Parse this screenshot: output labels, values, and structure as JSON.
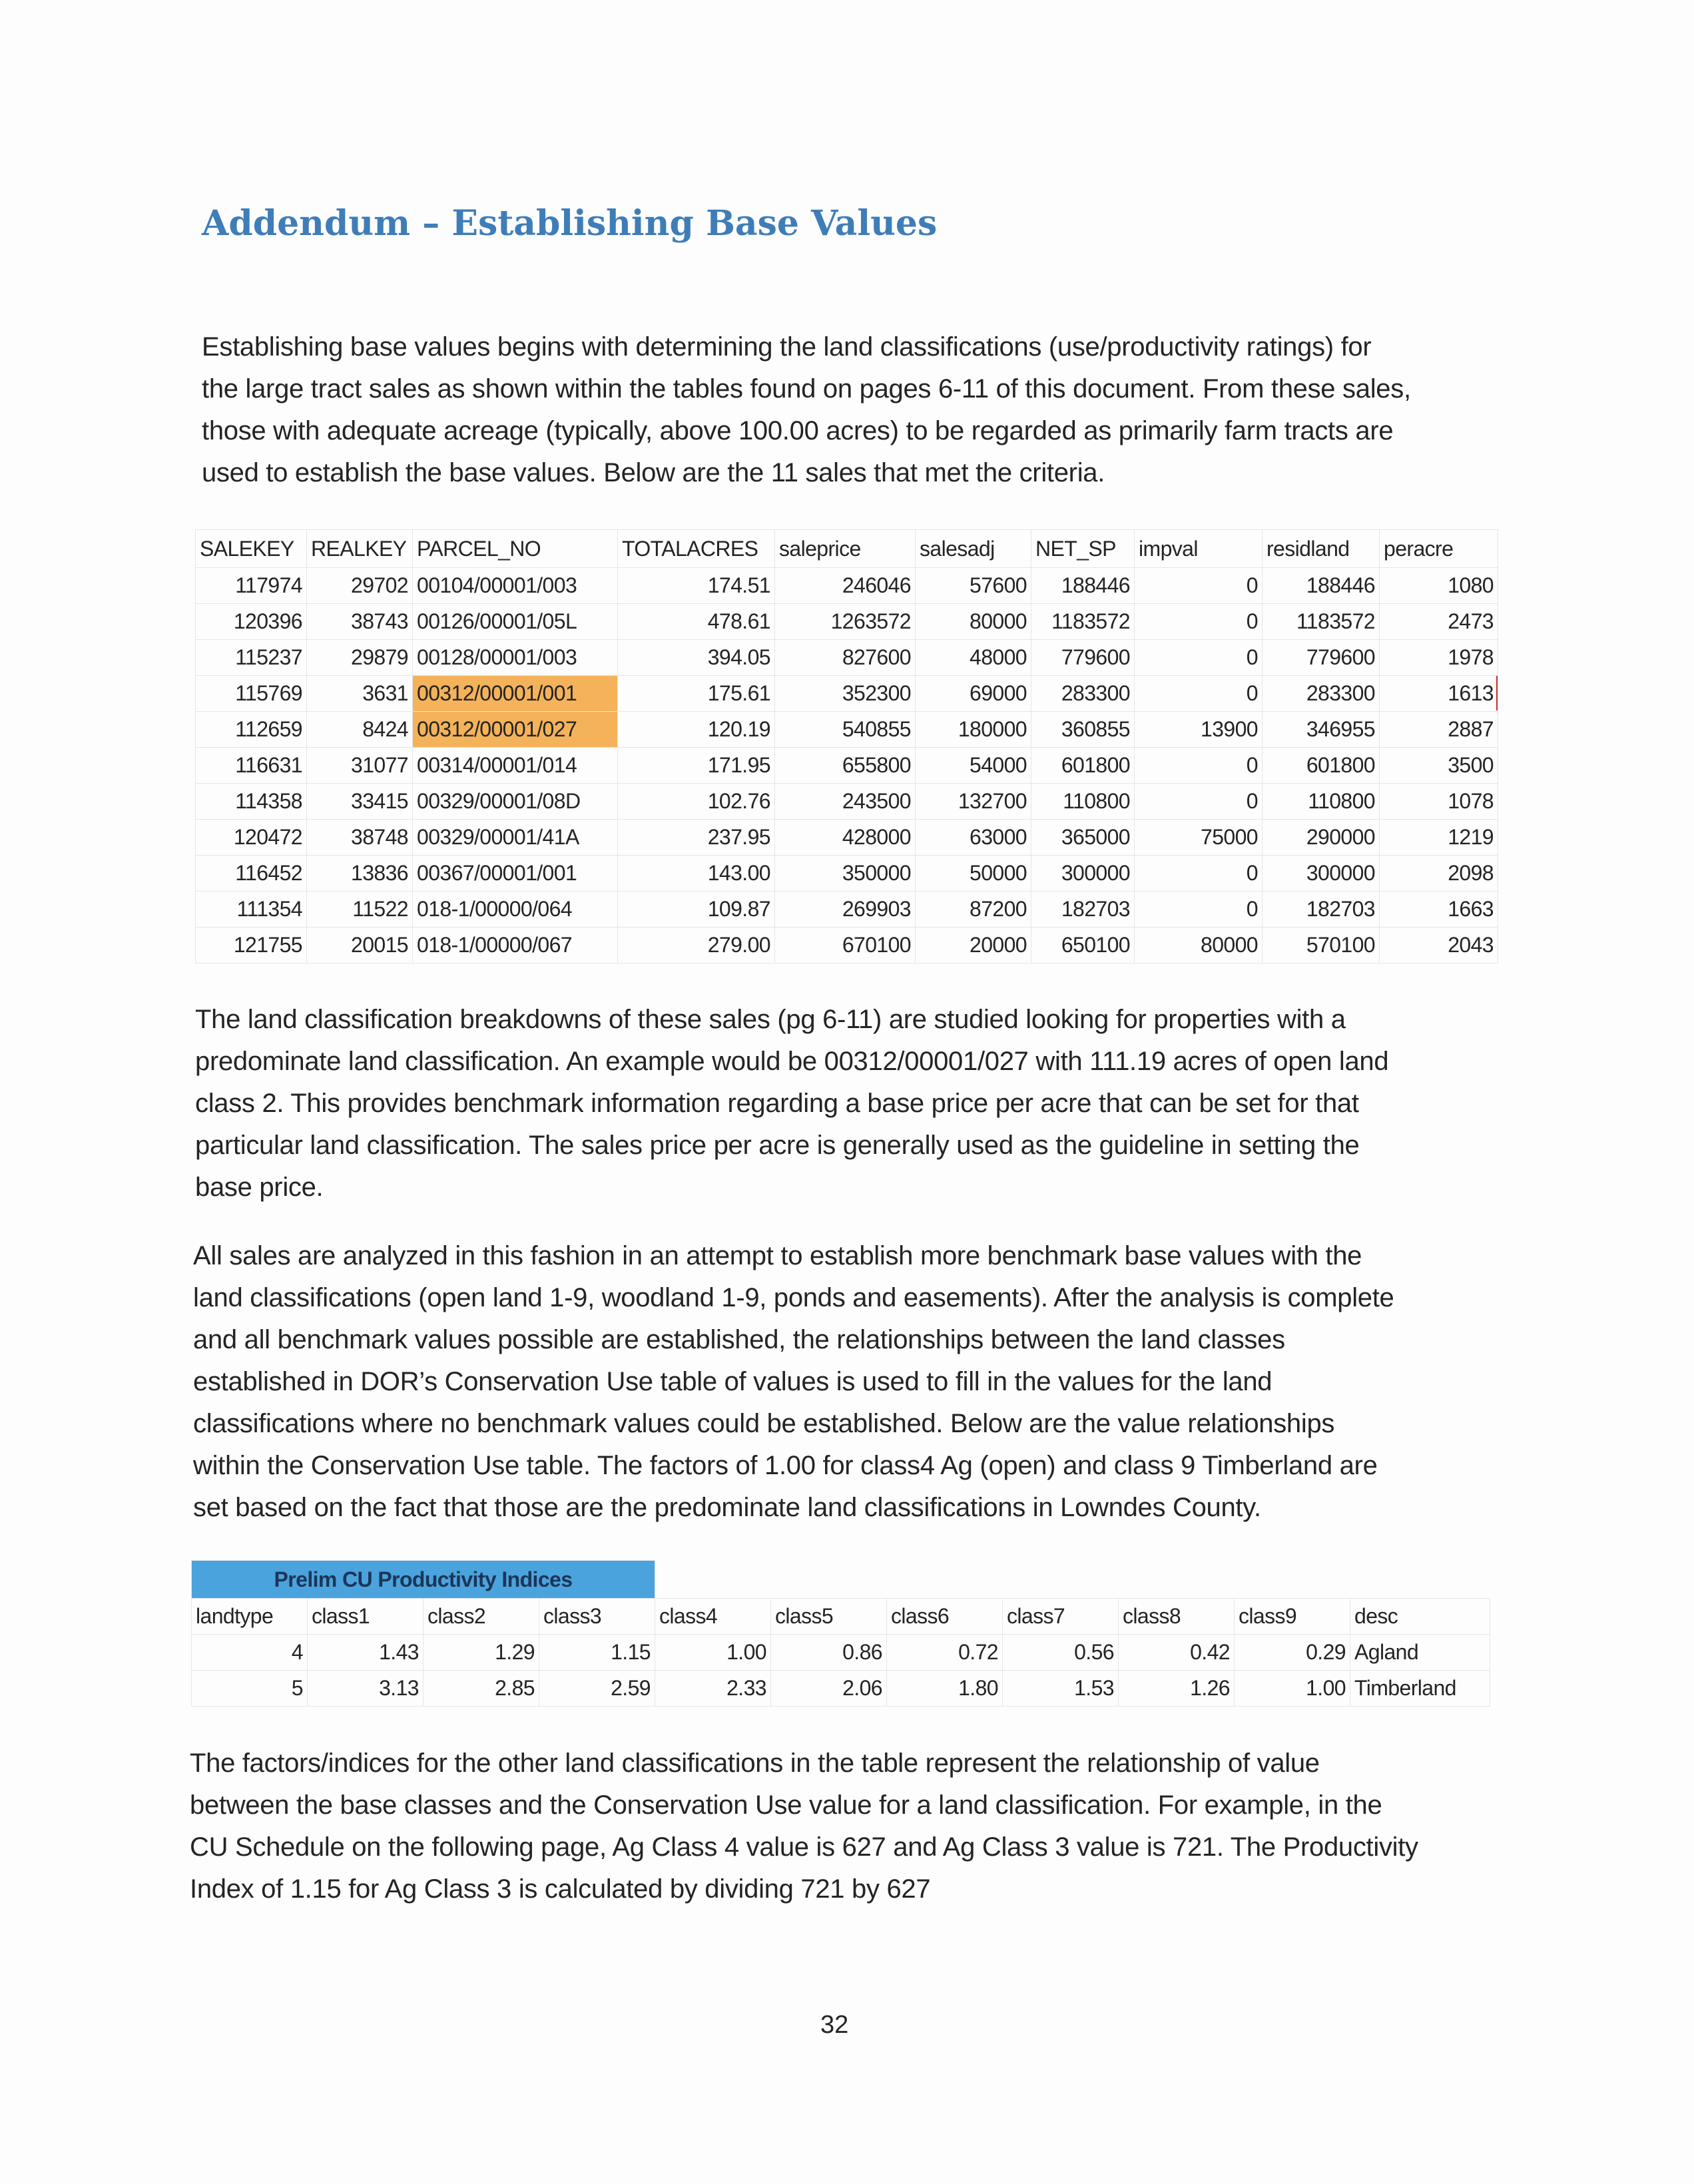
{
  "title": "Addendum – Establishing Base Values",
  "paragraphs": [
    [
      "Establishing base values begins with determining the land classifications (use/productivity ratings) for",
      "the large tract sales as shown within the tables found on pages 6-11 of this document.  From these sales,",
      "those with adequate acreage (typically, above 100.00 acres) to be regarded as primarily farm tracts are",
      "used to establish the base values.  Below are the 11 sales that met the criteria."
    ],
    [
      "The land classification breakdowns of these sales (pg 6-11) are studied looking for properties with a",
      "predominate land classification.  An example would be 00312/00001/027 with 111.19 acres of open land",
      "class 2.  This provides benchmark information regarding a base price per acre that can be set for that",
      "particular land classification.  The sales price per acre is generally used as the guideline in setting the",
      "base price."
    ],
    [
      "All sales are analyzed in this fashion in an attempt to establish more benchmark base values with the",
      "land classifications (open land 1-9, woodland 1-9, ponds and easements).  After the analysis is complete",
      "and all benchmark values possible are established, the relationships between the land classes",
      "established in DOR’s Conservation Use table of values is used to fill in the values for the land",
      "classifications where no benchmark values could be established.  Below are the value relationships",
      "within the Conservation Use table.  The factors of 1.00 for class4 Ag (open) and class 9 Timberland are",
      "set based on the fact that those are the predominate land classifications in Lowndes County."
    ],
    [
      "The factors/indices for the other land classifications in the table represent the relationship of value",
      "between the base classes and the Conservation Use value for a land classification.  For example, in the",
      "CU Schedule on the following page, Ag Class 4 value is 627 and Ag Class 3 value is 721.  The Productivity",
      "Index of 1.15 for Ag Class 3 is calculated by dividing 721 by 627"
    ]
  ],
  "sales_table": {
    "headers": [
      "SALEKEY",
      "REALKEY",
      "PARCEL_NO",
      "TOTALACRES",
      "saleprice",
      "salesadj",
      "NET_SP",
      "impval",
      "residland",
      "peracre"
    ],
    "highlight_color": "#f4b25a",
    "rows": [
      {
        "cells": [
          "117974",
          "29702",
          "00104/00001/003",
          "174.51",
          "246046",
          "57600",
          "188446",
          "0",
          "188446",
          "1080"
        ],
        "highlight": false
      },
      {
        "cells": [
          "120396",
          "38743",
          "00126/00001/05L",
          "478.61",
          "1263572",
          "80000",
          "1183572",
          "0",
          "1183572",
          "2473"
        ],
        "highlight": false
      },
      {
        "cells": [
          "115237",
          "29879",
          "00128/00001/003",
          "394.05",
          "827600",
          "48000",
          "779600",
          "0",
          "779600",
          "1978"
        ],
        "highlight": false
      },
      {
        "cells": [
          "115769",
          "3631",
          "00312/00001/001",
          "175.61",
          "352300",
          "69000",
          "283300",
          "0",
          "283300",
          "1613"
        ],
        "highlight": true
      },
      {
        "cells": [
          "112659",
          "8424",
          "00312/00001/027",
          "120.19",
          "540855",
          "180000",
          "360855",
          "13900",
          "346955",
          "2887"
        ],
        "highlight": true
      },
      {
        "cells": [
          "116631",
          "31077",
          "00314/00001/014",
          "171.95",
          "655800",
          "54000",
          "601800",
          "0",
          "601800",
          "3500"
        ],
        "highlight": false
      },
      {
        "cells": [
          "114358",
          "33415",
          "00329/00001/08D",
          "102.76",
          "243500",
          "132700",
          "110800",
          "0",
          "110800",
          "1078"
        ],
        "highlight": false
      },
      {
        "cells": [
          "120472",
          "38748",
          "00329/00001/41A",
          "237.95",
          "428000",
          "63000",
          "365000",
          "75000",
          "290000",
          "1219"
        ],
        "highlight": false
      },
      {
        "cells": [
          "116452",
          "13836",
          "00367/00001/001",
          "143.00",
          "350000",
          "50000",
          "300000",
          "0",
          "300000",
          "2098"
        ],
        "highlight": false
      },
      {
        "cells": [
          "111354",
          "11522",
          "018-1/00000/064",
          "109.87",
          "269903",
          "87200",
          "182703",
          "0",
          "182703",
          "1663"
        ],
        "highlight": false
      },
      {
        "cells": [
          "121755",
          "20015",
          "018-1/00000/067",
          "279.00",
          "670100",
          "20000",
          "650100",
          "80000",
          "570100",
          "2043"
        ],
        "highlight": false
      }
    ]
  },
  "cu_table": {
    "banner": "Prelim CU Productivity Indices",
    "banner_color": "#4aa3dd",
    "headers": [
      "landtype",
      "class1",
      "class2",
      "class3",
      "class4",
      "class5",
      "class6",
      "class7",
      "class8",
      "class9",
      "desc"
    ],
    "rows": [
      [
        "4",
        "1.43",
        "1.29",
        "1.15",
        "1.00",
        "0.86",
        "0.72",
        "0.56",
        "0.42",
        "0.29",
        "Agland"
      ],
      [
        "5",
        "3.13",
        "2.85",
        "2.59",
        "2.33",
        "2.06",
        "1.80",
        "1.53",
        "1.26",
        "1.00",
        "Timberland"
      ]
    ]
  },
  "page_number": "32"
}
